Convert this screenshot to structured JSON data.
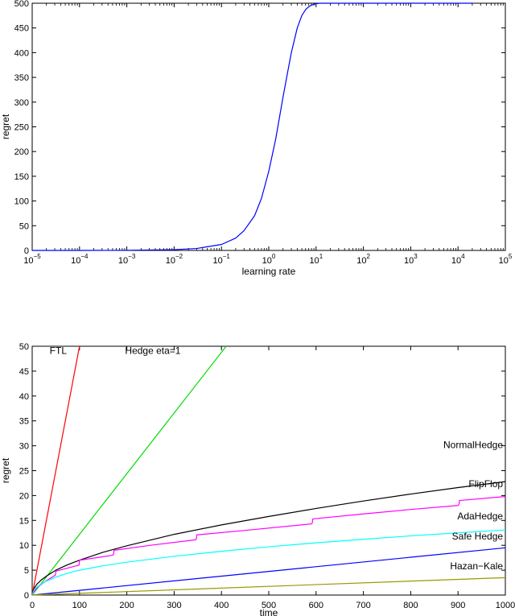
{
  "chart_data": [
    {
      "type": "line",
      "xscale": "log",
      "xlabel": "learning rate",
      "ylabel": "regret",
      "xlim": [
        1e-05,
        100000
      ],
      "ylim": [
        0,
        500
      ],
      "xticks": [
        {
          "value": 1e-05,
          "base": "10",
          "exp": "−5"
        },
        {
          "value": 0.0001,
          "base": "10",
          "exp": "−4"
        },
        {
          "value": 0.001,
          "base": "10",
          "exp": "−3"
        },
        {
          "value": 0.01,
          "base": "10",
          "exp": "−2"
        },
        {
          "value": 0.1,
          "base": "10",
          "exp": "−1"
        },
        {
          "value": 1,
          "base": "10",
          "exp": "0"
        },
        {
          "value": 10,
          "base": "10",
          "exp": "1"
        },
        {
          "value": 100,
          "base": "10",
          "exp": "2"
        },
        {
          "value": 1000,
          "base": "10",
          "exp": "3"
        },
        {
          "value": 10000,
          "base": "10",
          "exp": "4"
        },
        {
          "value": 100000,
          "base": "10",
          "exp": "5"
        }
      ],
      "yticks": [
        0,
        50,
        100,
        150,
        200,
        250,
        300,
        350,
        400,
        450,
        500
      ],
      "series": [
        {
          "name": "regret vs learning rate",
          "color": "#0000ff",
          "x": [
            1e-05,
            0.0001,
            0.001,
            0.01,
            0.03,
            0.1,
            0.2,
            0.3,
            0.5,
            0.7,
            1,
            1.4,
            2,
            2.5,
            3,
            4,
            5,
            6,
            7,
            8,
            10,
            12,
            15,
            20,
            30,
            100,
            1000,
            20000
          ],
          "y": [
            0,
            0,
            0.3,
            1.5,
            4,
            12,
            25,
            40,
            70,
            105,
            160,
            225,
            310,
            360,
            400,
            450,
            475,
            487,
            493,
            496,
            499,
            500,
            500,
            500,
            500,
            500,
            500,
            500
          ]
        }
      ]
    },
    {
      "type": "line",
      "xlabel": "time",
      "ylabel": "regret",
      "xlim": [
        0,
        1000
      ],
      "ylim": [
        0,
        50
      ],
      "xticks": [
        0,
        100,
        200,
        300,
        400,
        500,
        600,
        700,
        800,
        900,
        1000
      ],
      "yticks": [
        0,
        5,
        10,
        15,
        20,
        25,
        30,
        35,
        40,
        45,
        50
      ],
      "series": [
        {
          "name": "FTL",
          "color": "#ff0000",
          "label_pos": [
            55,
            48.5
          ],
          "x": [
            0,
            100
          ],
          "y": [
            0,
            50
          ]
        },
        {
          "name": "Hedge eta=1",
          "color": "#00dd00",
          "label_pos": [
            255,
            48.5
          ],
          "x": [
            0,
            410
          ],
          "y": [
            0,
            50
          ]
        },
        {
          "name": "NormalHedge",
          "color": "#000000",
          "label_pos": [
            995,
            29.5
          ],
          "x": [
            0,
            5,
            10,
            20,
            30,
            50,
            75,
            100,
            150,
            200,
            300,
            400,
            500,
            600,
            700,
            800,
            900,
            1000
          ],
          "y": [
            0,
            1.5,
            2.2,
            3.1,
            3.8,
            5.0,
            6.1,
            7.0,
            8.6,
            9.9,
            12.2,
            14.1,
            15.8,
            17.4,
            18.9,
            20.3,
            21.6,
            22.8
          ]
        },
        {
          "name": "FlipFlop",
          "color": "#ff00ff",
          "label_pos": [
            995,
            21.7
          ],
          "x": [
            0,
            10,
            20,
            30,
            49,
            50,
            90,
            99,
            100,
            170,
            172,
            173,
            250,
            345,
            347,
            348,
            450,
            590,
            592,
            593,
            700,
            800,
            900,
            902,
            903,
            1000
          ],
          "y": [
            0,
            1.5,
            2.2,
            2.9,
            4.0,
            4.8,
            5.8,
            6.0,
            7.0,
            8.0,
            8.2,
            9.0,
            10.0,
            11.1,
            11.3,
            12.1,
            13.0,
            14.3,
            14.5,
            15.3,
            16.3,
            17.2,
            18.0,
            18.2,
            19.0,
            19.8
          ]
        },
        {
          "name": "AdaHedge",
          "color": "#00ffff",
          "label_pos": [
            995,
            15.2
          ],
          "x": [
            0,
            5,
            10,
            20,
            30,
            50,
            75,
            100,
            150,
            200,
            300,
            400,
            500,
            600,
            700,
            800,
            900,
            1000
          ],
          "y": [
            0,
            1.2,
            1.6,
            2.3,
            2.8,
            3.6,
            4.4,
            5.0,
            5.9,
            6.6,
            7.8,
            8.8,
            9.7,
            10.5,
            11.2,
            11.9,
            12.5,
            13.1
          ]
        },
        {
          "name": "Safe Hedge",
          "color": "#0000ff",
          "label_pos": [
            995,
            11.2
          ],
          "x": [
            0,
            1000
          ],
          "y": [
            0,
            9.5
          ]
        },
        {
          "name": "Hazan−Kale",
          "color": "#999900",
          "label_pos": [
            995,
            5.2
          ],
          "x": [
            0,
            1000
          ],
          "y": [
            0,
            3.5
          ]
        }
      ]
    }
  ]
}
